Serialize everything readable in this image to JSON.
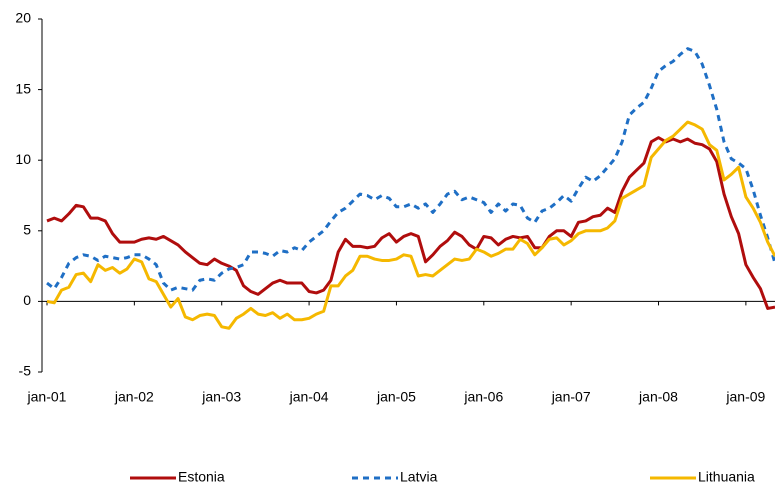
{
  "chart_data": {
    "type": "line",
    "categories": [
      "jan-01",
      null,
      null,
      null,
      null,
      null,
      null,
      null,
      null,
      null,
      null,
      null,
      "jan-02",
      null,
      null,
      null,
      null,
      null,
      null,
      null,
      null,
      null,
      null,
      null,
      "jan-03",
      null,
      null,
      null,
      null,
      null,
      null,
      null,
      null,
      null,
      null,
      null,
      "jan-04",
      null,
      null,
      null,
      null,
      null,
      null,
      null,
      null,
      null,
      null,
      null,
      "jan-05",
      null,
      null,
      null,
      null,
      null,
      null,
      null,
      null,
      null,
      null,
      null,
      "jan-06",
      null,
      null,
      null,
      null,
      null,
      null,
      null,
      null,
      null,
      null,
      null,
      "jan-07",
      null,
      null,
      null,
      null,
      null,
      null,
      null,
      null,
      null,
      null,
      null,
      "jan-08",
      null,
      null,
      null,
      null,
      null,
      null,
      null,
      null,
      null,
      null,
      null,
      "jan-09",
      null,
      null,
      null,
      null
    ],
    "series": [
      {
        "name": "Estonia",
        "color": "#b00d0d",
        "style": "solid",
        "values": [
          5.7,
          5.9,
          5.7,
          6.2,
          6.8,
          6.7,
          5.9,
          5.9,
          5.7,
          4.8,
          4.2,
          4.2,
          4.2,
          4.4,
          4.5,
          4.4,
          4.6,
          4.3,
          4.0,
          3.5,
          3.1,
          2.7,
          2.6,
          3.0,
          2.7,
          2.5,
          2.2,
          1.1,
          0.7,
          0.5,
          0.9,
          1.3,
          1.5,
          1.3,
          1.3,
          1.3,
          0.7,
          0.6,
          0.8,
          1.5,
          3.5,
          4.4,
          3.9,
          3.9,
          3.8,
          3.9,
          4.5,
          4.8,
          4.2,
          4.6,
          4.8,
          4.6,
          2.8,
          3.3,
          3.9,
          4.3,
          4.9,
          4.6,
          4.0,
          3.7,
          4.6,
          4.5,
          4.0,
          4.4,
          4.6,
          4.5,
          4.6,
          3.8,
          3.8,
          4.6,
          5.0,
          5.0,
          4.6,
          5.6,
          5.7,
          6.0,
          6.1,
          6.6,
          6.3,
          7.8,
          8.8,
          9.3,
          9.8,
          11.3,
          11.6,
          11.3,
          11.5,
          11.3,
          11.5,
          11.2,
          11.1,
          10.8,
          9.9,
          7.6,
          6.0,
          4.8,
          2.6,
          1.7,
          0.9,
          -0.5,
          -0.4
        ]
      },
      {
        "name": "Latvia",
        "color": "#1f6fc5",
        "style": "dashed",
        "values": [
          1.3,
          0.9,
          1.7,
          2.7,
          3.1,
          3.3,
          3.2,
          2.9,
          3.2,
          3.1,
          3.0,
          3.1,
          3.3,
          3.3,
          3.0,
          2.6,
          1.3,
          0.8,
          1.0,
          0.9,
          0.8,
          1.5,
          1.6,
          1.5,
          2.0,
          2.3,
          2.4,
          2.6,
          3.5,
          3.5,
          3.4,
          3.2,
          3.6,
          3.5,
          3.8,
          3.6,
          4.2,
          4.6,
          5.0,
          5.7,
          6.3,
          6.6,
          7.1,
          7.6,
          7.5,
          7.2,
          7.5,
          7.3,
          6.7,
          6.7,
          6.9,
          6.6,
          6.9,
          6.3,
          6.9,
          7.6,
          7.8,
          7.2,
          7.4,
          7.2,
          7.0,
          6.3,
          6.9,
          6.4,
          6.9,
          6.8,
          5.9,
          5.6,
          6.4,
          6.6,
          7.0,
          7.5,
          7.1,
          8.0,
          8.8,
          8.5,
          8.9,
          9.5,
          10.1,
          11.3,
          13.2,
          13.7,
          14.1,
          15.1,
          16.3,
          16.7,
          17.0,
          17.5,
          17.9,
          17.7,
          16.8,
          15.3,
          13.6,
          11.3,
          10.1,
          9.8,
          9.4,
          7.9,
          6.1,
          4.5,
          2.7
        ]
      },
      {
        "name": "Lithuania",
        "color": "#f5b800",
        "style": "solid",
        "values": [
          0.0,
          -0.1,
          0.8,
          1.0,
          1.9,
          2.0,
          1.4,
          2.6,
          2.2,
          2.4,
          2.0,
          2.3,
          3.0,
          2.8,
          1.6,
          1.4,
          0.5,
          -0.4,
          0.2,
          -1.1,
          -1.3,
          -1.0,
          -0.9,
          -1.0,
          -1.8,
          -1.9,
          -1.2,
          -0.9,
          -0.5,
          -0.9,
          -1.0,
          -0.8,
          -1.2,
          -0.9,
          -1.3,
          -1.3,
          -1.2,
          -0.9,
          -0.7,
          1.1,
          1.1,
          1.8,
          2.2,
          3.2,
          3.2,
          3.0,
          2.9,
          2.9,
          3.0,
          3.3,
          3.2,
          1.8,
          1.9,
          1.8,
          2.2,
          2.6,
          3.0,
          2.9,
          3.0,
          3.7,
          3.5,
          3.2,
          3.4,
          3.7,
          3.7,
          4.4,
          4.1,
          3.3,
          3.8,
          4.4,
          4.5,
          4.0,
          4.3,
          4.8,
          5.0,
          5.0,
          5.0,
          5.2,
          5.7,
          7.3,
          7.6,
          7.9,
          8.2,
          10.2,
          10.8,
          11.4,
          11.7,
          12.2,
          12.7,
          12.5,
          12.2,
          11.1,
          10.7,
          8.6,
          9.0,
          9.5,
          7.4,
          6.6,
          5.6,
          4.2,
          3.2
        ]
      }
    ],
    "ylim": [
      -5,
      20
    ],
    "yticks": [
      -5,
      0,
      5,
      10,
      15,
      20
    ],
    "grid": false,
    "legend": "bottom"
  }
}
